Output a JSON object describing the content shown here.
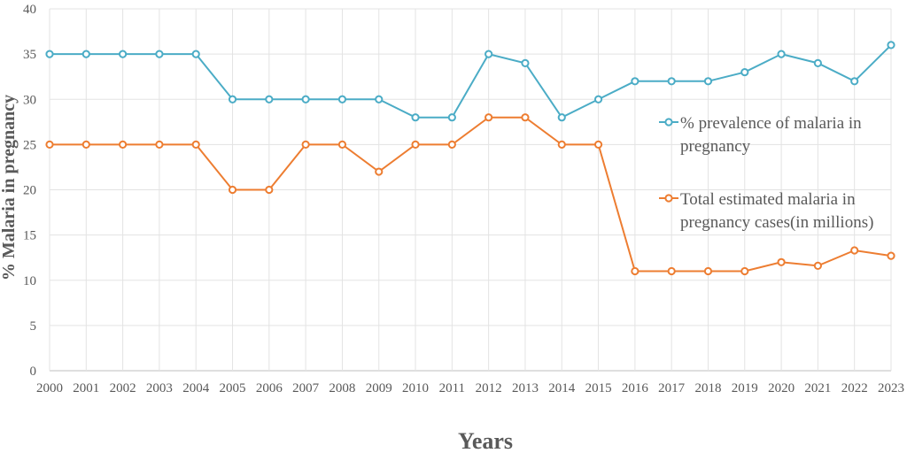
{
  "chart_data": {
    "type": "line",
    "xlabel": "Years",
    "ylabel": "% Malaria in pregnancy",
    "ylim": [
      0,
      40
    ],
    "yticks": [
      0,
      5,
      10,
      15,
      20,
      25,
      30,
      35,
      40
    ],
    "grid": true,
    "legend_position": "right",
    "categories": [
      "2000",
      "2001",
      "2002",
      "2003",
      "2004",
      "2005",
      "2006",
      "2007",
      "2008",
      "2009",
      "2010",
      "2011",
      "2012",
      "2013",
      "2014",
      "2015",
      "2016",
      "2017",
      "2018",
      "2019",
      "2020",
      "2021",
      "2022",
      "2023"
    ],
    "series": [
      {
        "name": "% prevalence of malaria in pregnancy",
        "legend_lines": [
          "% prevalence of malaria in",
          "pregnancy"
        ],
        "color": "#4BACC6",
        "values": [
          35,
          35,
          35,
          35,
          35,
          30,
          30,
          30,
          30,
          30,
          28,
          28,
          35,
          34,
          28,
          30,
          32,
          32,
          32,
          33,
          35,
          34,
          32,
          36
        ]
      },
      {
        "name": "Total estimated malaria in pregnancy cases(in millions)",
        "legend_lines": [
          "Total estimated malaria in",
          "pregnancy cases(in millions)"
        ],
        "color": "#ED7D31",
        "values": [
          25,
          25,
          25,
          25,
          25,
          20,
          20,
          25,
          25,
          22,
          25,
          25,
          28,
          28,
          25,
          25,
          11,
          11,
          11,
          11,
          12,
          11.6,
          13.3,
          12.7
        ]
      }
    ]
  }
}
